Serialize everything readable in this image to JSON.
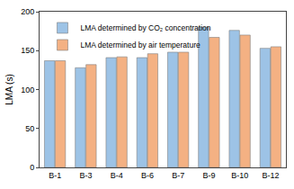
{
  "chart_data": {
    "type": "bar",
    "y_label": "LMA (s)",
    "categories": [
      "B-1",
      "B-3",
      "B-4",
      "B-6",
      "B-7",
      "B-9",
      "B-10",
      "B-12"
    ],
    "series": [
      {
        "name": "LMA determined by CO₂ concentration",
        "color": "#9dc3e6",
        "values": [
          137,
          128,
          141,
          141,
          148,
          180,
          176,
          153
        ]
      },
      {
        "name": "LMA determined by air temperature",
        "color": "#f4b183",
        "values": [
          137,
          132,
          142,
          146,
          148,
          167,
          170,
          155
        ]
      }
    ],
    "ylim": [
      0,
      200
    ],
    "yticks": [
      0,
      50,
      100,
      150,
      200
    ],
    "grid": false,
    "legend": "upper left"
  }
}
